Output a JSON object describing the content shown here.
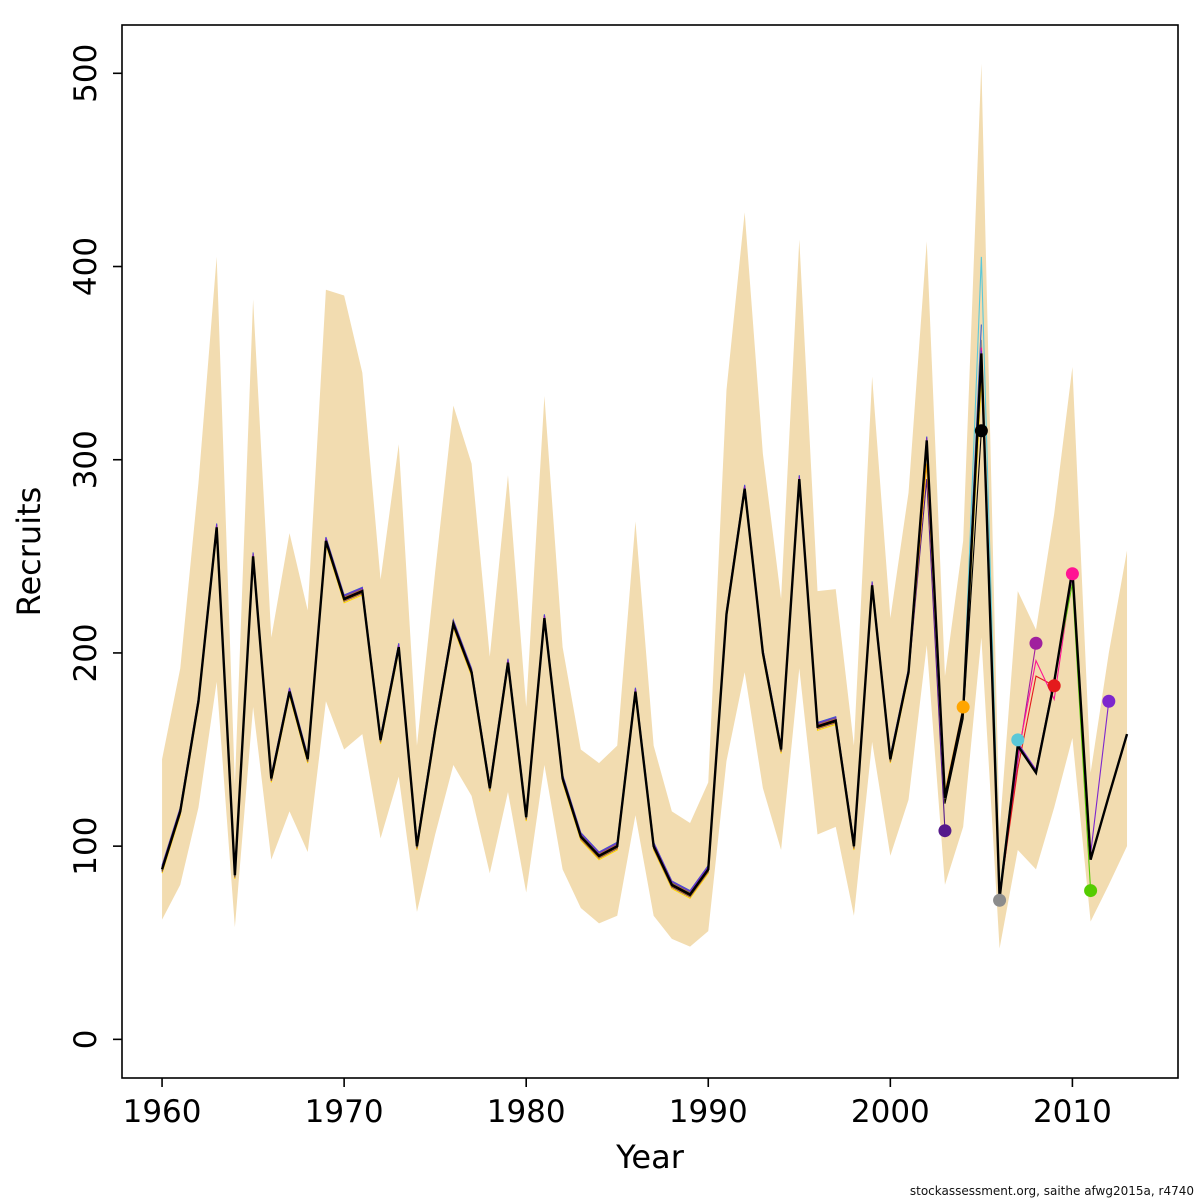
{
  "footer": {
    "attribution": "stockassessment.org, saithe  afwg2015a, r4740"
  },
  "chart_data": {
    "type": "line",
    "title": "",
    "xlabel": "Year",
    "ylabel": "Recruits",
    "xlim": [
      1957.8,
      2015.8
    ],
    "ylim": [
      -20,
      525
    ],
    "x_ticks": [
      1960,
      1970,
      1980,
      1990,
      2000,
      2010
    ],
    "y_ticks": [
      0,
      100,
      200,
      300,
      400,
      500
    ],
    "grid": false,
    "legend": "none",
    "band_color": "#F2DCB0",
    "base_color": "#000000",
    "years": [
      1960,
      1961,
      1962,
      1963,
      1964,
      1965,
      1966,
      1967,
      1968,
      1969,
      1970,
      1971,
      1972,
      1973,
      1974,
      1975,
      1976,
      1977,
      1978,
      1979,
      1980,
      1981,
      1982,
      1983,
      1984,
      1985,
      1986,
      1987,
      1988,
      1989,
      1990,
      1991,
      1992,
      1993,
      1994,
      1995,
      1996,
      1997,
      1998,
      1999,
      2000,
      2001,
      2002,
      2003,
      2004,
      2005,
      2006,
      2007,
      2008,
      2009,
      2010,
      2011,
      2012,
      2013
    ],
    "base": [
      88,
      118,
      175,
      265,
      85,
      250,
      135,
      180,
      145,
      258,
      228,
      232,
      155,
      203,
      100,
      160,
      215,
      190,
      130,
      195,
      115,
      218,
      135,
      105,
      95,
      100,
      180,
      100,
      80,
      75,
      88,
      220,
      285,
      200,
      150,
      290,
      162,
      165,
      100,
      235,
      145,
      190,
      310,
      125,
      170,
      355,
      73,
      152,
      138,
      185,
      243,
      93,
      126,
      158
    ],
    "band_low": [
      62,
      80,
      120,
      185,
      58,
      172,
      93,
      118,
      97,
      175,
      150,
      158,
      104,
      136,
      66,
      106,
      142,
      126,
      86,
      128,
      76,
      142,
      88,
      68,
      60,
      64,
      116,
      64,
      52,
      48,
      56,
      144,
      190,
      130,
      98,
      192,
      106,
      110,
      64,
      154,
      95,
      124,
      204,
      80,
      110,
      208,
      47,
      98,
      88,
      120,
      156,
      61,
      80,
      100
    ],
    "band_high": [
      145,
      192,
      288,
      405,
      132,
      383,
      208,
      262,
      222,
      388,
      385,
      345,
      238,
      308,
      152,
      242,
      328,
      298,
      198,
      292,
      172,
      333,
      203,
      150,
      143,
      152,
      268,
      152,
      118,
      112,
      133,
      336,
      428,
      303,
      228,
      414,
      232,
      233,
      152,
      343,
      218,
      283,
      413,
      188,
      258,
      505,
      108,
      232,
      212,
      272,
      348,
      138,
      200,
      253
    ],
    "runs": [
      {
        "name": "run-yellow",
        "color": "#FFD700",
        "end_year": 2005,
        "offset": -2.0,
        "dot": false,
        "tail": {
          "2005": 340
        }
      },
      {
        "name": "run-blue",
        "color": "#3A5FCD",
        "end_year": 2005,
        "offset": 2.0,
        "dot": false,
        "tail": {
          "2005": 370
        }
      },
      {
        "name": "retro-2003",
        "color": "#551A8B",
        "end_year": 2003,
        "offset": -1.2,
        "dot": true,
        "tail": {
          "2002": 290,
          "2003": 108
        }
      },
      {
        "name": "retro-2004",
        "color": "#FFA500",
        "end_year": 2004,
        "offset": -0.9,
        "dot": true,
        "tail": {
          "2002": 298,
          "2003": 128,
          "2004": 172
        }
      },
      {
        "name": "retro-2005",
        "color": "#000000",
        "end_year": 2005,
        "offset": -0.6,
        "dot": true,
        "tail": {
          "2003": 122,
          "2004": 166,
          "2005": 315
        }
      },
      {
        "name": "retro-2006",
        "color": "#8C8C8C",
        "end_year": 2006,
        "offset": -0.3,
        "dot": true,
        "tail": {
          "2005": 362,
          "2006": 72
        }
      },
      {
        "name": "retro-2007",
        "color": "#5BC8D8",
        "end_year": 2007,
        "offset": 0,
        "dot": true,
        "tail": {
          "2005": 405,
          "2006": 76,
          "2007": 155
        }
      },
      {
        "name": "retro-2008",
        "color": "#A0209E",
        "end_year": 2008,
        "offset": 0.3,
        "dot": true,
        "tail": {
          "2005": 348,
          "2006": 73,
          "2007": 144,
          "2008": 205
        }
      },
      {
        "name": "retro-2009",
        "color": "#E41A1C",
        "end_year": 2009,
        "offset": 0.6,
        "dot": true,
        "tail": {
          "2005": 352,
          "2006": 74,
          "2007": 140,
          "2008": 188,
          "2009": 183
        }
      },
      {
        "name": "retro-2010",
        "color": "#FF1493",
        "end_year": 2010,
        "offset": 0.9,
        "dot": true,
        "tail": {
          "2005": 358,
          "2006": 75,
          "2007": 147,
          "2008": 196,
          "2009": 176,
          "2010": 241
        }
      },
      {
        "name": "retro-2011",
        "color": "#55CC00",
        "end_year": 2011,
        "offset": 1.2,
        "dot": true,
        "tail": {
          "2010": 236,
          "2011": 77
        }
      },
      {
        "name": "retro-2012",
        "color": "#7D26CD",
        "end_year": 2012,
        "offset": 1.5,
        "dot": true,
        "tail": {
          "2010": 240,
          "2011": 96,
          "2012": 175
        }
      }
    ]
  }
}
